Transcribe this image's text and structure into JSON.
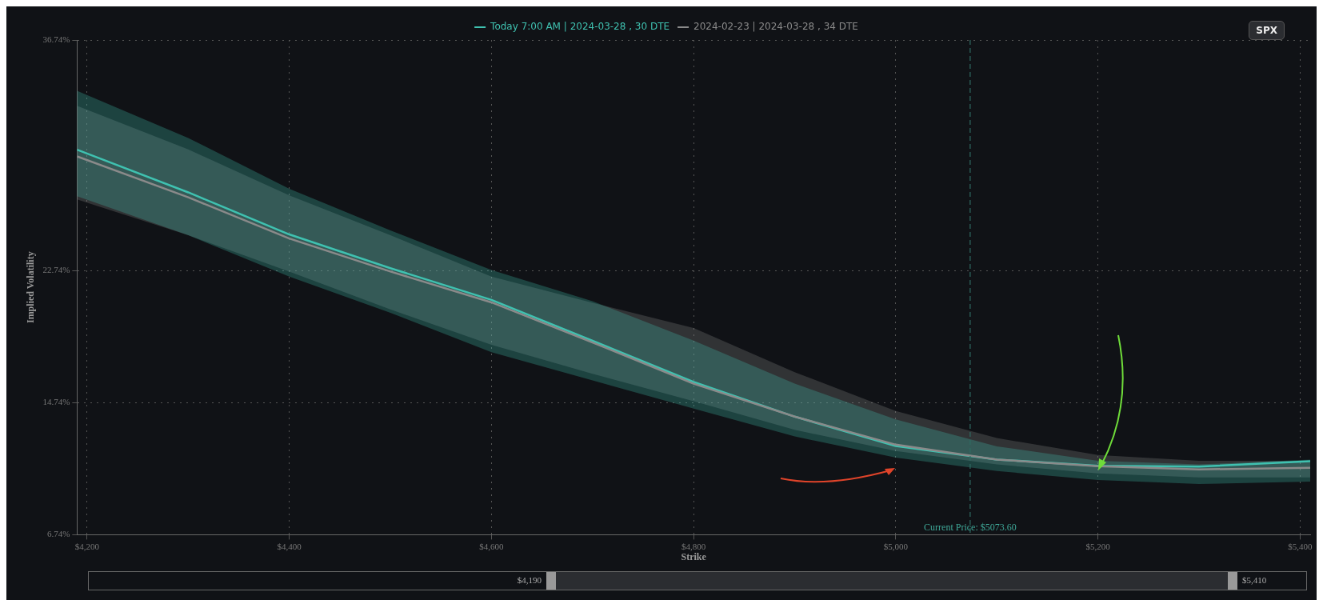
{
  "chart_data": {
    "type": "line",
    "xlabel": "Strike",
    "ylabel": "Implied Volatility",
    "x": [
      4190,
      4300,
      4400,
      4500,
      4600,
      4700,
      4800,
      4900,
      5000,
      5100,
      5200,
      5300,
      5410
    ],
    "series": [
      {
        "name": "Today 7:00 AM | 2024-03-28 , 30 DTE",
        "color": "#3fc1b0",
        "values": [
          30.09,
          27.5,
          24.95,
          22.9,
          20.98,
          18.5,
          16.0,
          13.9,
          12.12,
          11.3,
          10.92,
          10.87,
          11.2
        ],
        "lower": [
          27.27,
          24.9,
          22.39,
          20.2,
          17.81,
          16.1,
          14.39,
          12.7,
          11.42,
          10.6,
          10.06,
          9.81,
          9.96
        ],
        "upper": [
          33.66,
          30.8,
          27.72,
          25.2,
          22.79,
          20.9,
          18.51,
          15.9,
          13.73,
          12.1,
          11.22,
          11.0,
          11.3
        ]
      },
      {
        "name": "2024-02-23 | 2024-03-28 , 34 DTE",
        "color": "#8a8a8a",
        "values": [
          29.68,
          27.2,
          24.7,
          22.7,
          20.83,
          18.4,
          15.9,
          13.9,
          12.2,
          11.3,
          10.9,
          10.7,
          10.8
        ],
        "lower": [
          27.07,
          24.9,
          22.69,
          20.4,
          18.26,
          16.5,
          14.84,
          13.1,
          11.82,
          11.0,
          10.46,
          10.21,
          10.21
        ],
        "upper": [
          32.75,
          30.1,
          27.32,
          24.9,
          22.39,
          20.8,
          19.27,
          16.6,
          14.24,
          12.6,
          11.57,
          11.22,
          11.22
        ]
      }
    ],
    "xlim": [
      4190,
      5410
    ],
    "xticks": [
      {
        "value": 4200,
        "label": "$4,200"
      },
      {
        "value": 4400,
        "label": "$4,400"
      },
      {
        "value": 4600,
        "label": "$4,600"
      },
      {
        "value": 4800,
        "label": "$4,800"
      },
      {
        "value": 5000,
        "label": "$5,000"
      },
      {
        "value": 5200,
        "label": "$5,200"
      },
      {
        "value": 5400,
        "label": "$5,400"
      }
    ],
    "ylim": [
      6.74,
      36.74
    ],
    "yticks": [
      {
        "value": 6.74,
        "label": "6.74%"
      },
      {
        "value": 14.74,
        "label": "14.74%"
      },
      {
        "value": 22.74,
        "label": "22.74%"
      },
      {
        "value": 36.74,
        "label": "36.74%"
      }
    ],
    "ref_lines": [
      {
        "axis": "x",
        "value": 5073.6,
        "label": "Current Price: $5073.60",
        "color": "#2f6b62",
        "line_style": "dashed"
      }
    ],
    "annotations": [
      "SPX",
      "$4,190",
      "$5,410"
    ],
    "grid": true,
    "legend": "top",
    "marker": "none",
    "line_style": "solid"
  }
}
